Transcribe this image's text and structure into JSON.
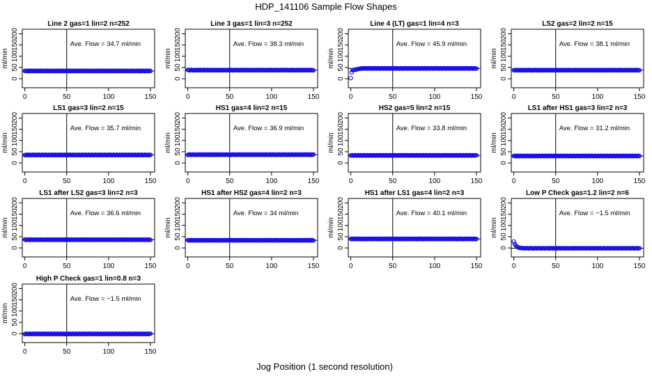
{
  "title": "HDP_141106  Sample Flow Shapes",
  "xlabel": "Jog Position (1 second resolution)",
  "ylabel": "ml/min",
  "colors": {
    "points": "#1a0fe6",
    "frame": "#000000"
  },
  "chart_data": [
    {
      "type": "scatter",
      "title": "Line 2 gas=1 lin=2 n=252",
      "annotation": "Ave. Flow = 34.7  ml/min",
      "avg": 34.7,
      "profile": "flat",
      "xlim": [
        -3,
        155
      ],
      "ylim": [
        -40,
        220
      ],
      "xticks": [
        0,
        50,
        100,
        150
      ],
      "yticks": [
        0,
        50,
        100,
        150,
        200
      ],
      "vline": 50
    },
    {
      "type": "scatter",
      "title": "Line 3 gas=1 lin=3 n=252",
      "annotation": "Ave. Flow = 38.3  ml/min",
      "avg": 38.3,
      "profile": "flat",
      "xlim": [
        -3,
        155
      ],
      "ylim": [
        -40,
        220
      ],
      "xticks": [
        0,
        50,
        100,
        150
      ],
      "yticks": [
        0,
        50,
        100,
        150,
        200
      ],
      "vline": 50
    },
    {
      "type": "scatter",
      "title": "Line 4 (LT) gas=1 lin=4 n=3",
      "annotation": "Ave. Flow = 45.9  ml/min",
      "avg": 45.9,
      "profile": "rise",
      "xlim": [
        -3,
        155
      ],
      "ylim": [
        -40,
        220
      ],
      "xticks": [
        0,
        50,
        100,
        150
      ],
      "yticks": [
        0,
        50,
        100,
        150,
        200
      ],
      "vline": 50
    },
    {
      "type": "scatter",
      "title": "LS2 gas=2 lin=2 n=15",
      "annotation": "Ave. Flow = 38.1  ml/min",
      "avg": 38.1,
      "profile": "flat",
      "xlim": [
        -3,
        155
      ],
      "ylim": [
        -40,
        220
      ],
      "xticks": [
        0,
        50,
        100,
        150
      ],
      "yticks": [
        0,
        50,
        100,
        150,
        200
      ],
      "vline": 50
    },
    {
      "type": "scatter",
      "title": "LS1 gas=3 lin=2 n=15",
      "annotation": "Ave. Flow = 35.7  ml/min",
      "avg": 35.7,
      "profile": "flat",
      "xlim": [
        -3,
        155
      ],
      "ylim": [
        -40,
        220
      ],
      "xticks": [
        0,
        50,
        100,
        150
      ],
      "yticks": [
        0,
        50,
        100,
        150,
        200
      ],
      "vline": 50
    },
    {
      "type": "scatter",
      "title": "HS1 gas=4 lin=2 n=15",
      "annotation": "Ave. Flow = 36.9  ml/min",
      "avg": 36.9,
      "profile": "flat",
      "xlim": [
        -3,
        155
      ],
      "ylim": [
        -40,
        220
      ],
      "xticks": [
        0,
        50,
        100,
        150
      ],
      "yticks": [
        0,
        50,
        100,
        150,
        200
      ],
      "vline": 50
    },
    {
      "type": "scatter",
      "title": "HS2 gas=5 lin=2 n=15",
      "annotation": "Ave. Flow = 33.8  ml/min",
      "avg": 33.8,
      "profile": "flat",
      "xlim": [
        -3,
        155
      ],
      "ylim": [
        -40,
        220
      ],
      "xticks": [
        0,
        50,
        100,
        150
      ],
      "yticks": [
        0,
        50,
        100,
        150,
        200
      ],
      "vline": 50
    },
    {
      "type": "scatter",
      "title": "LS1 after HS1 gas=3 lin=2 n=3",
      "annotation": "Ave. Flow = 31.2  ml/min",
      "avg": 31.2,
      "profile": "flat",
      "xlim": [
        -3,
        155
      ],
      "ylim": [
        -40,
        220
      ],
      "xticks": [
        0,
        50,
        100,
        150
      ],
      "yticks": [
        0,
        50,
        100,
        150,
        200
      ],
      "vline": 50
    },
    {
      "type": "scatter",
      "title": "LS1 after LS2 gas=3 lin=2 n=3",
      "annotation": "Ave. Flow = 36.6  ml/min",
      "avg": 36.6,
      "profile": "flat",
      "xlim": [
        -3,
        155
      ],
      "ylim": [
        -40,
        220
      ],
      "xticks": [
        0,
        50,
        100,
        150
      ],
      "yticks": [
        0,
        50,
        100,
        150,
        200
      ],
      "vline": 50
    },
    {
      "type": "scatter",
      "title": "HS1 after HS2 gas=4 lin=2 n=3",
      "annotation": "Ave. Flow = 34  ml/min",
      "avg": 34,
      "profile": "flat",
      "xlim": [
        -3,
        155
      ],
      "ylim": [
        -40,
        220
      ],
      "xticks": [
        0,
        50,
        100,
        150
      ],
      "yticks": [
        0,
        50,
        100,
        150,
        200
      ],
      "vline": 50
    },
    {
      "type": "scatter",
      "title": "HS1 after LS1 gas=4 lin=2 n=3",
      "annotation": "Ave. Flow = 40.1  ml/min",
      "avg": 40.1,
      "profile": "flat",
      "xlim": [
        -3,
        155
      ],
      "ylim": [
        -40,
        220
      ],
      "xticks": [
        0,
        50,
        100,
        150
      ],
      "yticks": [
        0,
        50,
        100,
        150,
        200
      ],
      "vline": 50
    },
    {
      "type": "scatter",
      "title": "Low P Check gas=1.2 lin=2 n=6",
      "annotation": "Ave. Flow = −1.5  ml/min",
      "avg": -1.5,
      "profile": "drop",
      "xlim": [
        -3,
        155
      ],
      "ylim": [
        -40,
        220
      ],
      "xticks": [
        0,
        50,
        100,
        150
      ],
      "yticks": [
        0,
        50,
        100,
        150,
        200
      ],
      "vline": 50
    },
    {
      "type": "scatter",
      "title": "High P Check gas=1 lin=0.8 n=3",
      "annotation": "Ave. Flow = −1.5  ml/min",
      "avg": -1.5,
      "profile": "flat",
      "xlim": [
        -3,
        155
      ],
      "ylim": [
        -40,
        220
      ],
      "xticks": [
        0,
        50,
        100,
        150
      ],
      "yticks": [
        0,
        50,
        100,
        150,
        200
      ],
      "vline": 50
    }
  ]
}
